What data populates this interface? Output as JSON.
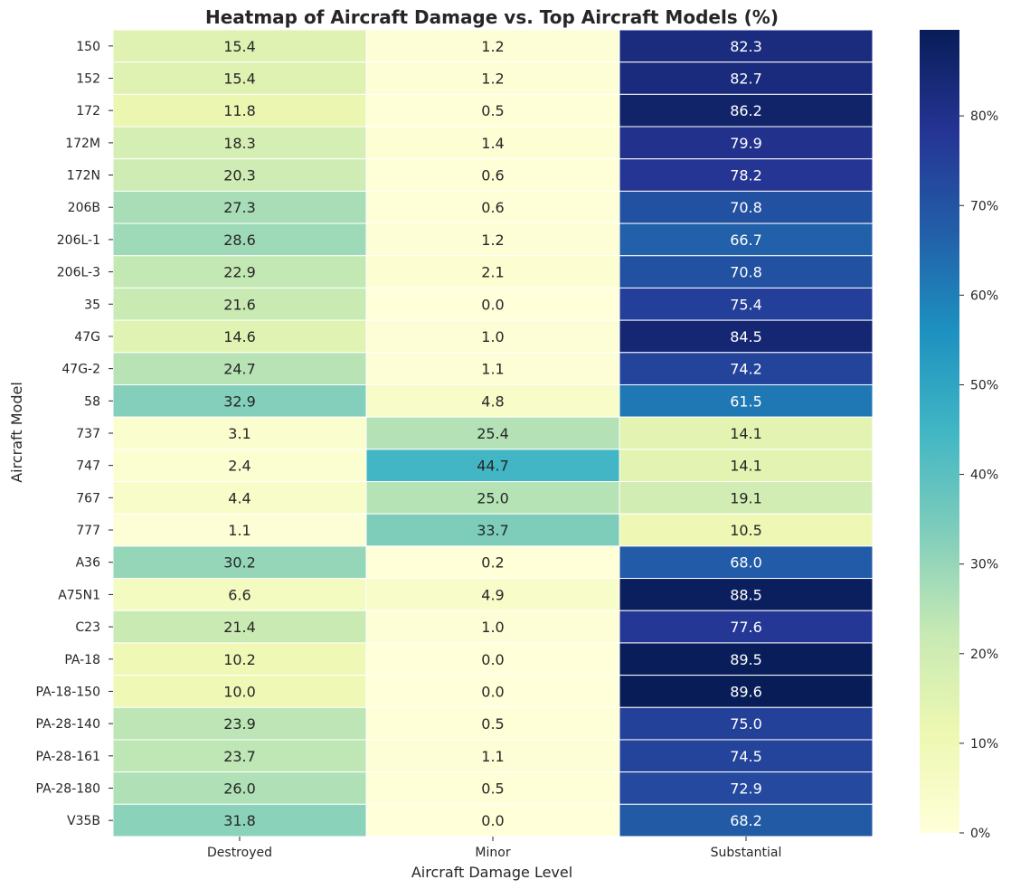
{
  "chart_data": {
    "type": "heatmap",
    "title": "Heatmap of Aircraft Damage vs. Top Aircraft Models (%)",
    "xlabel": "Aircraft Damage Level",
    "ylabel": "Aircraft Model",
    "columns": [
      "Destroyed",
      "Minor",
      "Substantial"
    ],
    "rows": [
      "150",
      "152",
      "172",
      "172M",
      "172N",
      "206B",
      "206L-1",
      "206L-3",
      "35",
      "47G",
      "47G-2",
      "58",
      "737",
      "747",
      "767",
      "777",
      "A36",
      "A75N1",
      "C23",
      "PA-18",
      "PA-18-150",
      "PA-28-140",
      "PA-28-161",
      "PA-28-180",
      "V35B"
    ],
    "values": [
      [
        15.4,
        1.2,
        82.3
      ],
      [
        15.4,
        1.2,
        82.7
      ],
      [
        11.8,
        0.5,
        86.2
      ],
      [
        18.3,
        1.4,
        79.9
      ],
      [
        20.3,
        0.6,
        78.2
      ],
      [
        27.3,
        0.6,
        70.8
      ],
      [
        28.6,
        1.2,
        66.7
      ],
      [
        22.9,
        2.1,
        70.8
      ],
      [
        21.6,
        0.0,
        75.4
      ],
      [
        14.6,
        1.0,
        84.5
      ],
      [
        24.7,
        1.1,
        74.2
      ],
      [
        32.9,
        4.8,
        61.5
      ],
      [
        3.1,
        25.4,
        14.1
      ],
      [
        2.4,
        44.7,
        14.1
      ],
      [
        4.4,
        25.0,
        19.1
      ],
      [
        1.1,
        33.7,
        10.5
      ],
      [
        30.2,
        0.2,
        68.0
      ],
      [
        6.6,
        4.9,
        88.5
      ],
      [
        21.4,
        1.0,
        77.6
      ],
      [
        10.2,
        0.0,
        89.5
      ],
      [
        10.0,
        0.0,
        89.6
      ],
      [
        23.9,
        0.5,
        75.0
      ],
      [
        23.7,
        1.1,
        74.5
      ],
      [
        26.0,
        0.5,
        72.9
      ],
      [
        31.8,
        0.0,
        68.2
      ]
    ],
    "colormap": "YlGnBu",
    "vmin": 0,
    "vmax": 89.6,
    "colorbar_ticks": [
      0,
      10,
      20,
      30,
      40,
      50,
      60,
      70,
      80
    ],
    "colorbar_tick_labels": [
      "0%",
      "10%",
      "20%",
      "30%",
      "40%",
      "50%",
      "60%",
      "70%",
      "80%"
    ],
    "annotation_format": "%.1f"
  }
}
